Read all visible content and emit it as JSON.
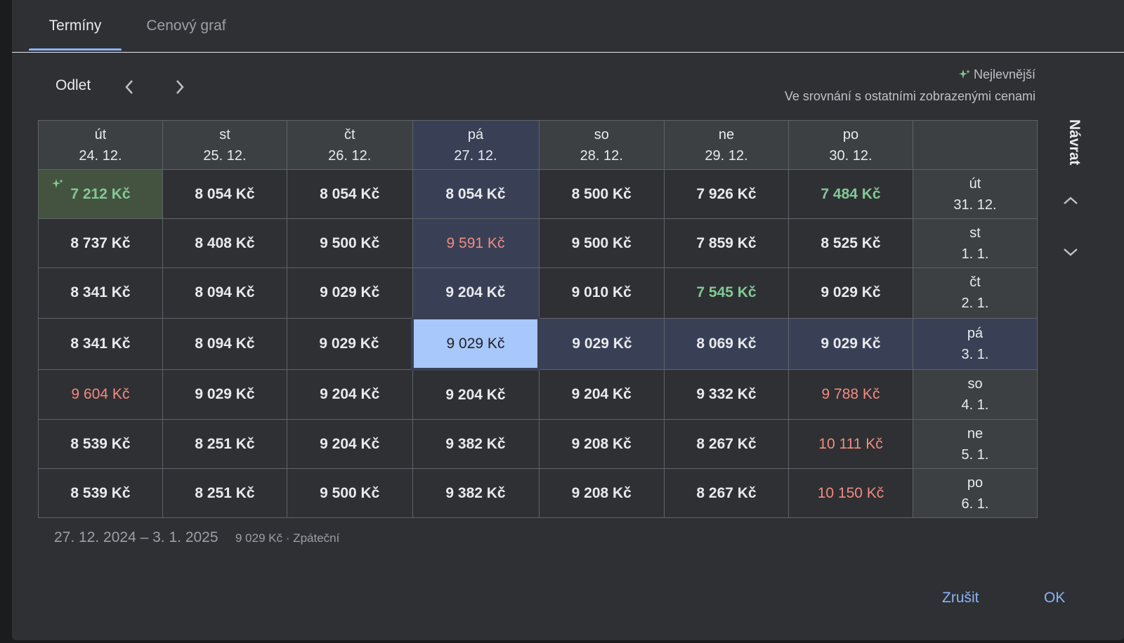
{
  "tabs": [
    {
      "label": "Termíny"
    },
    {
      "label": "Cenový graf"
    }
  ],
  "header": {
    "departure_label": "Odlet",
    "legend_title": "Nejlevnější",
    "legend_subtitle": "Ve srovnání s ostatními zobrazenými cenami"
  },
  "departure_days": [
    {
      "day": "út",
      "date": "24. 12."
    },
    {
      "day": "st",
      "date": "25. 12."
    },
    {
      "day": "čt",
      "date": "26. 12."
    },
    {
      "day": "pá",
      "date": "27. 12."
    },
    {
      "day": "so",
      "date": "28. 12."
    },
    {
      "day": "ne",
      "date": "29. 12."
    },
    {
      "day": "po",
      "date": "30. 12."
    }
  ],
  "return_label": "Návrat",
  "rows": [
    {
      "day": "út",
      "date": "31. 12.",
      "prices": [
        "7 212 Kč",
        "8 054 Kč",
        "8 054 Kč",
        "8 054 Kč",
        "8 500 Kč",
        "7 926 Kč",
        "7 484 Kč"
      ],
      "tones": [
        "cheapest",
        "",
        "",
        "",
        "",
        "",
        "green"
      ]
    },
    {
      "day": "st",
      "date": "1. 1.",
      "prices": [
        "8 737 Kč",
        "8 408 Kč",
        "9 500 Kč",
        "9 591 Kč",
        "9 500 Kč",
        "7 859 Kč",
        "8 525 Kč"
      ],
      "tones": [
        "",
        "",
        "",
        "red",
        "",
        "",
        ""
      ]
    },
    {
      "day": "čt",
      "date": "2. 1.",
      "prices": [
        "8 341 Kč",
        "8 094 Kč",
        "9 029 Kč",
        "9 204 Kč",
        "9 010 Kč",
        "7 545 Kč",
        "9 029 Kč"
      ],
      "tones": [
        "",
        "",
        "",
        "",
        "",
        "green",
        ""
      ]
    },
    {
      "day": "pá",
      "date": "3. 1.",
      "prices": [
        "8 341 Kč",
        "8 094 Kč",
        "9 029 Kč",
        "9 029 Kč",
        "9 029 Kč",
        "8 069 Kč",
        "9 029 Kč"
      ],
      "tones": [
        "",
        "",
        "",
        "",
        "",
        "",
        ""
      ]
    },
    {
      "day": "so",
      "date": "4. 1.",
      "prices": [
        "9 604 Kč",
        "9 029 Kč",
        "9 204 Kč",
        "9 204 Kč",
        "9 204 Kč",
        "9 332 Kč",
        "9 788 Kč"
      ],
      "tones": [
        "red",
        "",
        "",
        "",
        "",
        "",
        "red"
      ]
    },
    {
      "day": "ne",
      "date": "5. 1.",
      "prices": [
        "8 539 Kč",
        "8 251 Kč",
        "9 204 Kč",
        "9 382 Kč",
        "9 208 Kč",
        "8 267 Kč",
        "10 111 Kč"
      ],
      "tones": [
        "",
        "",
        "",
        "",
        "",
        "",
        "red"
      ]
    },
    {
      "day": "po",
      "date": "6. 1.",
      "prices": [
        "8 539 Kč",
        "8 251 Kč",
        "9 500 Kč",
        "9 382 Kč",
        "9 208 Kč",
        "8 267 Kč",
        "10 150 Kč"
      ],
      "tones": [
        "",
        "",
        "",
        "",
        "",
        "",
        "red"
      ]
    }
  ],
  "selected": {
    "row": 3,
    "col": 3
  },
  "summary": {
    "dates": "27. 12. 2024 – 3. 1. 2025",
    "price": "9 029 Kč · Zpáteční"
  },
  "buttons": {
    "cancel": "Zrušit",
    "ok": "OK"
  },
  "colors": {
    "accent": "#8ab4f8",
    "cheap": "#81c995",
    "expensive": "#f28b82",
    "selected": "#a8c7fa",
    "highlight": "#394056"
  }
}
